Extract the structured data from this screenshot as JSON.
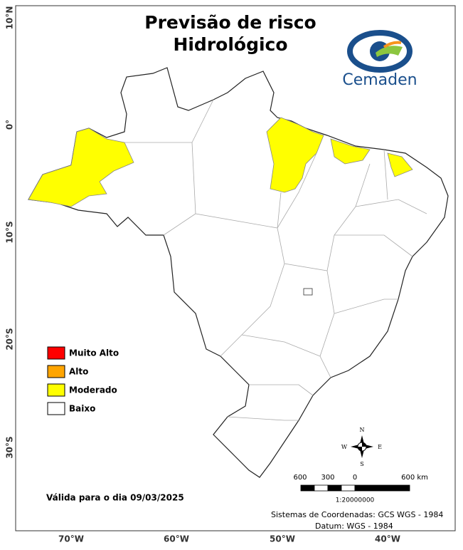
{
  "header": {
    "title_line1": "Previsão de risco",
    "title_line2": "Hidrológico",
    "logo_text": "Cemaden"
  },
  "legend": {
    "items": [
      {
        "label": "Muito Alto",
        "color": "#ff0000"
      },
      {
        "label": "Alto",
        "color": "#ffa500"
      },
      {
        "label": "Moderado",
        "color": "#ffff00"
      },
      {
        "label": "Baixo",
        "color": "#ffffff"
      }
    ]
  },
  "axes": {
    "latitude": [
      "10°N",
      "0°",
      "10°S",
      "20°S",
      "30°S"
    ],
    "longitude": [
      "70°W",
      "60°W",
      "50°W",
      "40°W"
    ]
  },
  "compass": {
    "north": "N",
    "south": "S",
    "east": "E",
    "west": "W"
  },
  "scale_bar": {
    "labels": [
      "600",
      "300",
      "0",
      "600 km"
    ],
    "ratio": "1:20000000"
  },
  "footer": {
    "validity": "Válida para o dia 09/03/2025",
    "coordinate_system": "Sistemas de Coordenadas: GCS WGS - 1984",
    "datum": "Datum: WGS - 1984"
  }
}
